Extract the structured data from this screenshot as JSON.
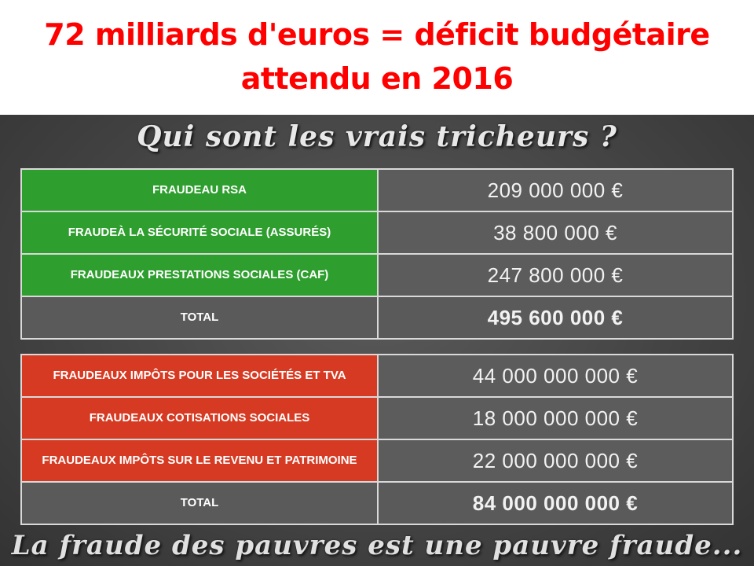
{
  "headline": {
    "line1": "72 milliards d'euros =  déficit budgétaire",
    "line2": "attendu en 2016"
  },
  "board": {
    "title": "Qui sont les vrais tricheurs ?",
    "footer": "La fraude des pauvres est une pauvre fraude..."
  },
  "table_poor": {
    "rows": [
      {
        "line1": "FRAUDE",
        "line2": "AU RSA",
        "amount": "209 000 000 €"
      },
      {
        "line1": "FRAUDE",
        "line2": "À LA SÉCURITÉ SOCIALE (ASSURÉS)",
        "amount": "38 800 000 €"
      },
      {
        "line1": "FRAUDE",
        "line2": "AUX PRESTATIONS SOCIALES (CAF)",
        "amount": "247 800 000 €"
      }
    ],
    "total_label": "TOTAL",
    "total_amount": "495 600 000 €",
    "accent_color": "#2e9e2e"
  },
  "table_rich": {
    "rows": [
      {
        "line1": "FRAUDE",
        "line2": "AUX IMPÔTS POUR LES SOCIÉTÉS ET TVA",
        "amount": "44 000 000 000 €"
      },
      {
        "line1": "FRAUDE",
        "line2": "AUX COTISATIONS SOCIALES",
        "amount": "18 000 000 000 €"
      },
      {
        "line1": "FRAUDE",
        "line2": "AUX IMPÔTS SUR LE REVENU ET PATRIMOINE",
        "amount": "22 000 000 000 €"
      }
    ],
    "total_label": "TOTAL",
    "total_amount": "84 000 000 000 €",
    "accent_color": "#d63a22"
  },
  "headline_color": "#ff0000"
}
